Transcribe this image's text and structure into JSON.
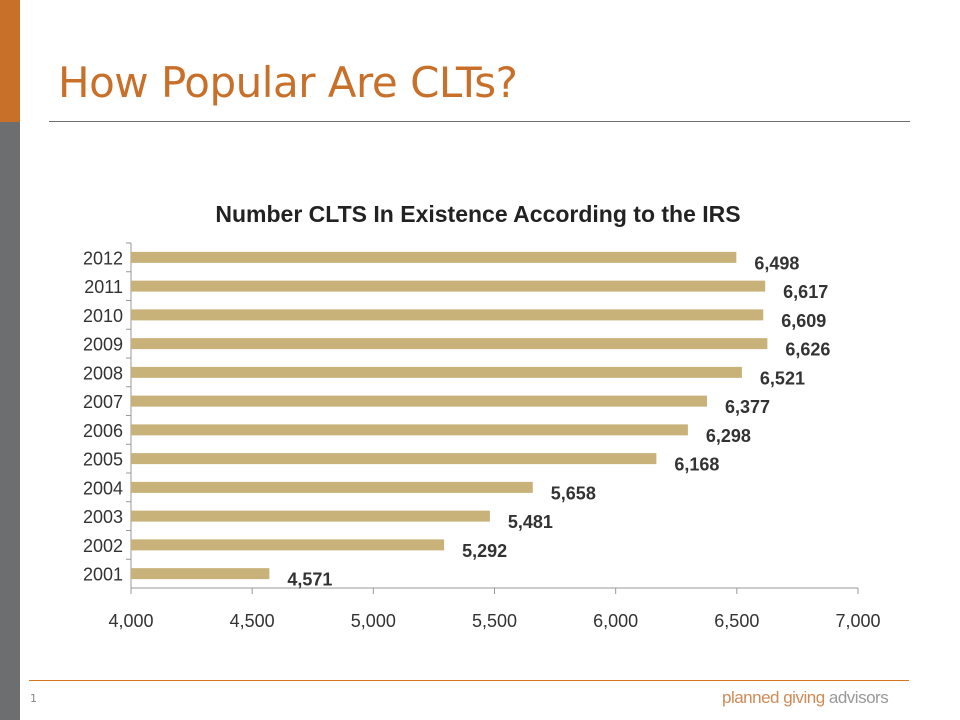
{
  "slide": {
    "title": "How Popular Are CLTs?",
    "page_number": "1",
    "logo_part1": "planned giving",
    "logo_part2": "advisors"
  },
  "colors": {
    "accent": "#c8702a",
    "sidebar_gray": "#6d6e70",
    "bar": "#c8b27a"
  },
  "chart_data": {
    "type": "bar",
    "orientation": "horizontal",
    "title": "Number CLTS In Existence According to the IRS",
    "categories": [
      "2012",
      "2011",
      "2010",
      "2009",
      "2008",
      "2007",
      "2006",
      "2005",
      "2004",
      "2003",
      "2002",
      "2001"
    ],
    "values": [
      6498,
      6617,
      6609,
      6626,
      6521,
      6377,
      6298,
      6168,
      5658,
      5481,
      5292,
      4571
    ],
    "data_labels": [
      "6,498",
      "6,617",
      "6,609",
      "6,626",
      "6,521",
      "6,377",
      "6,298",
      "6,168",
      "5,658",
      "5,481",
      "5,292",
      "4,571"
    ],
    "xlim": [
      4000,
      7000
    ],
    "x_ticks": [
      4000,
      4500,
      5000,
      5500,
      6000,
      6500,
      7000
    ],
    "x_tick_labels": [
      "4,000",
      "4,500",
      "5,000",
      "5,500",
      "6,000",
      "6,500",
      "7,000"
    ],
    "grid": false,
    "legend": "none"
  }
}
